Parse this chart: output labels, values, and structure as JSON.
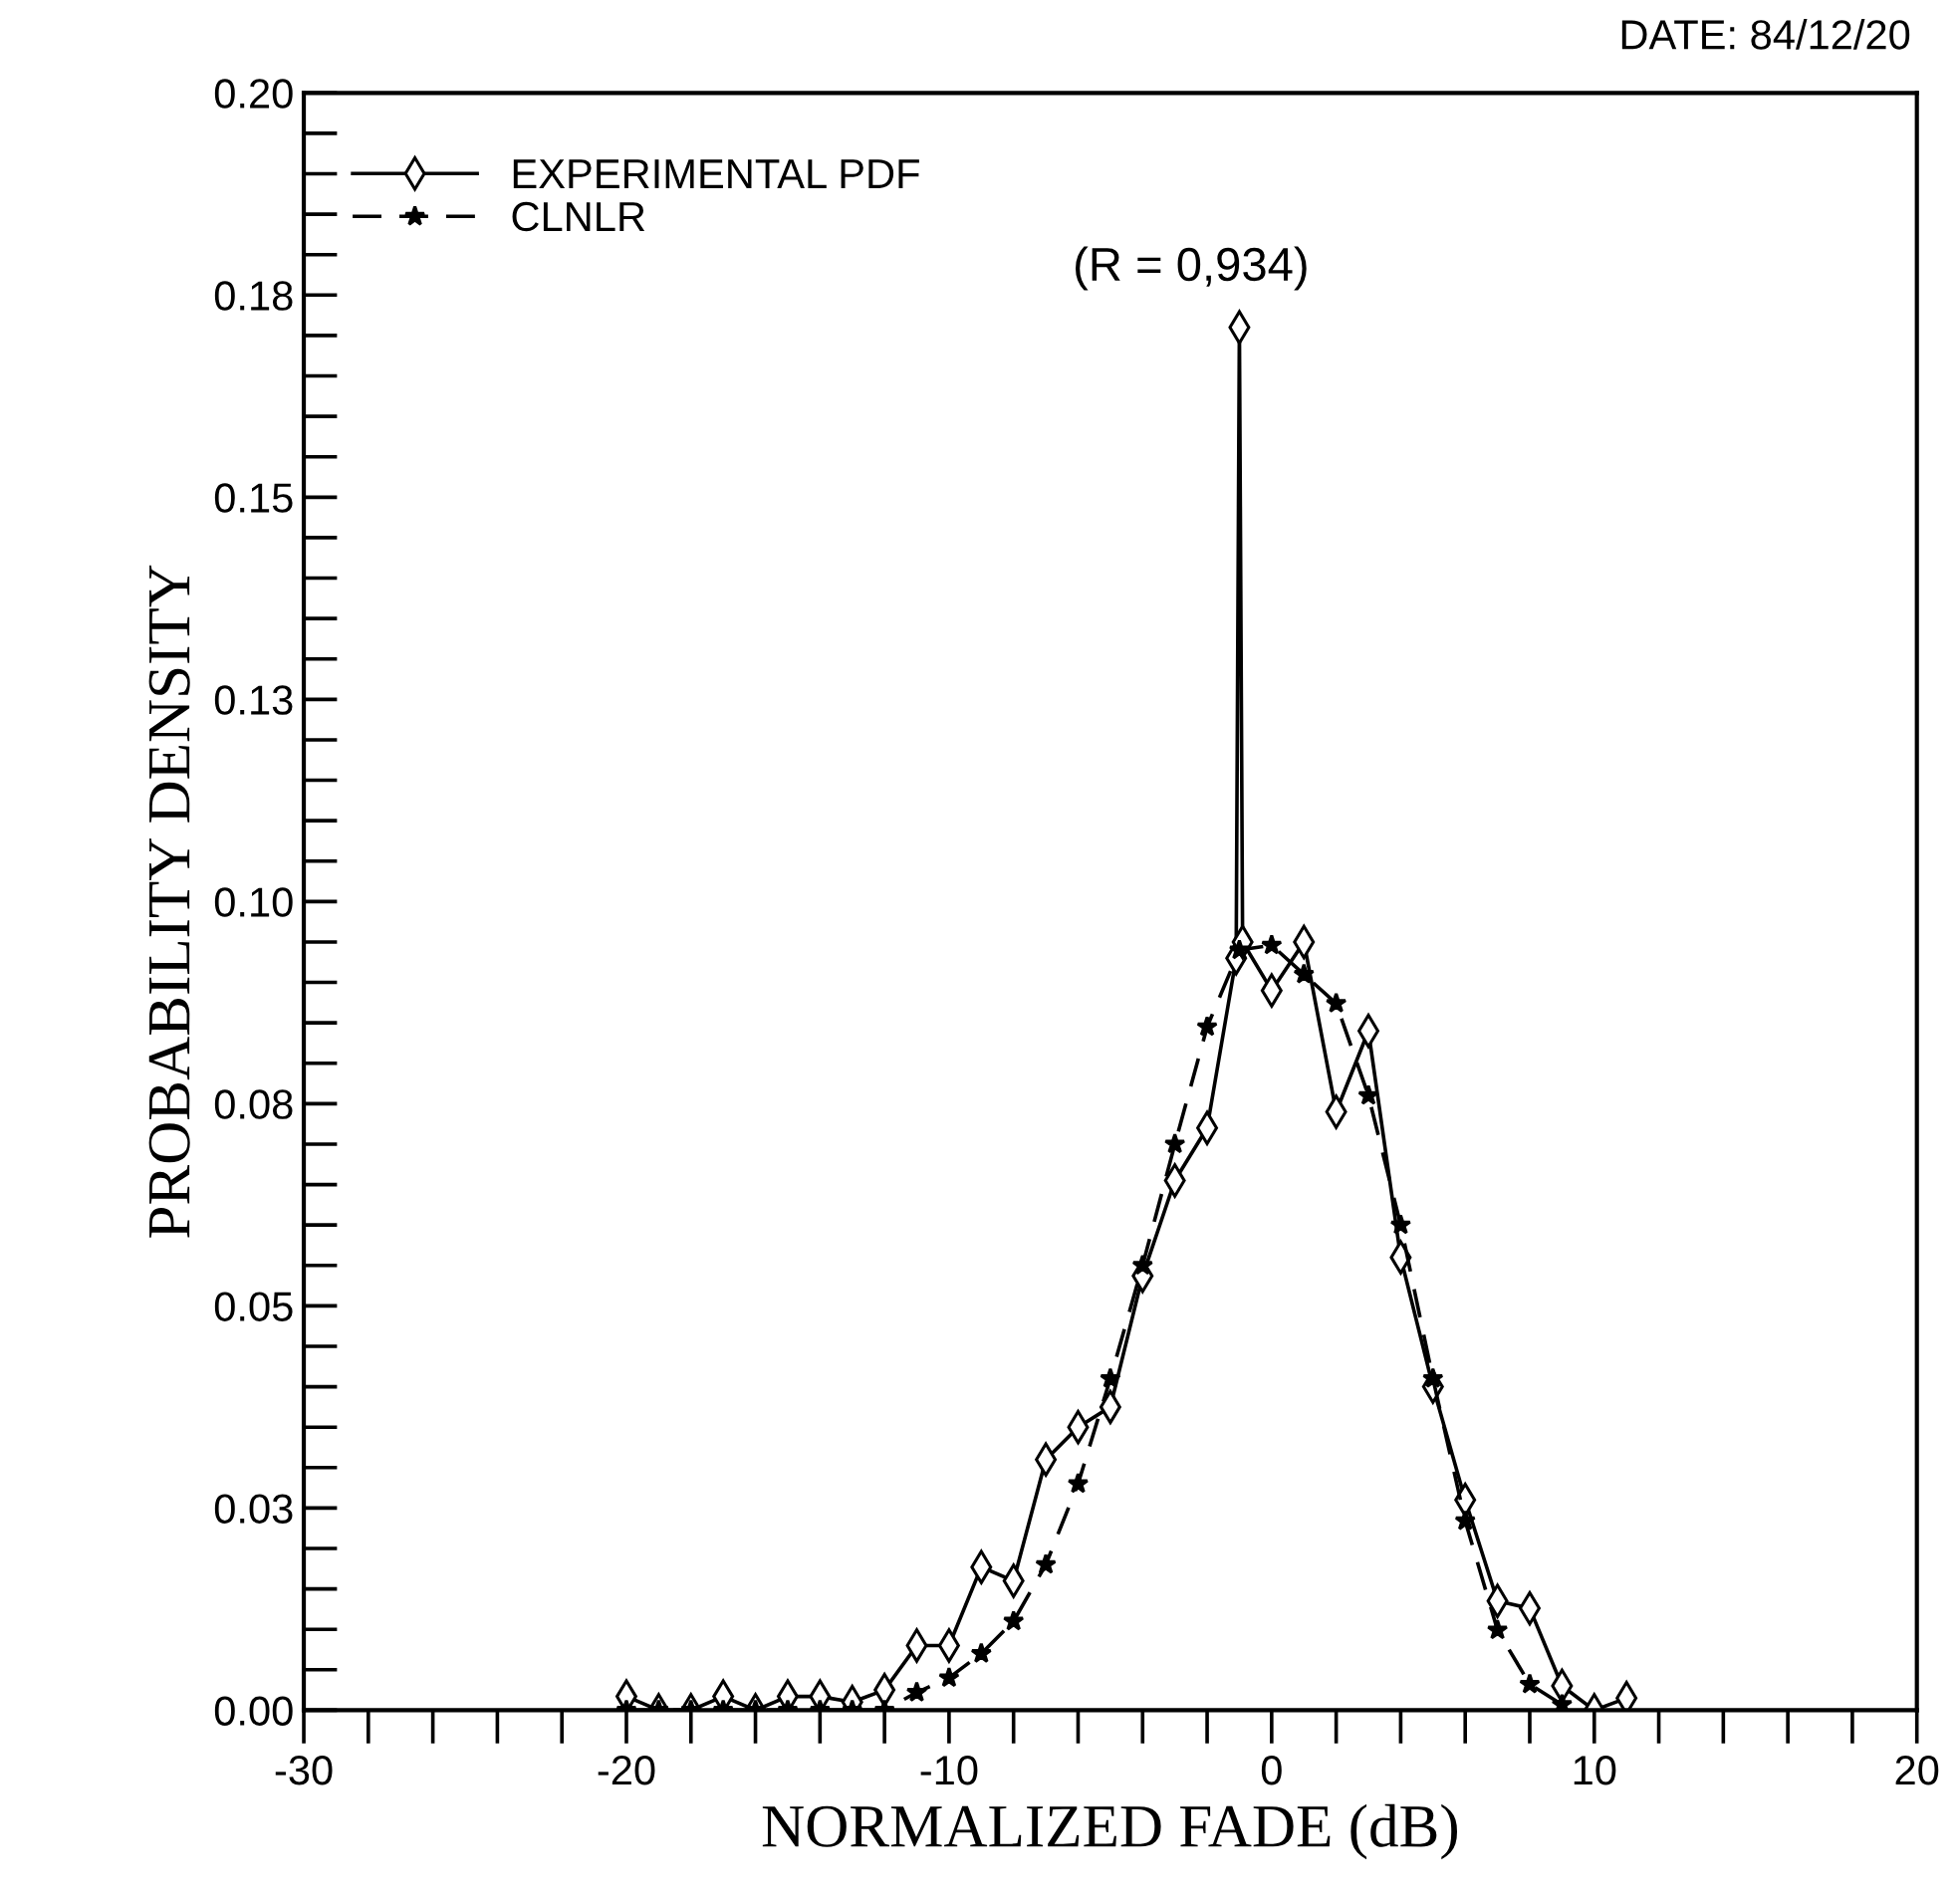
{
  "chart_data": {
    "type": "line",
    "xlabel": "NORMALIZED FADE (dB)",
    "ylabel": "PROBABILITY DENSITY",
    "annotations": [
      "DATE: 84/12/20",
      "(R = 0,934)"
    ],
    "series": [
      {
        "name": "EXPERIMENTAL PDF",
        "color": "#000000",
        "marker": "diamond",
        "line_style": "solid",
        "x": [
          -20,
          -19,
          -18,
          -17,
          -16,
          -15,
          -14,
          -13,
          -12,
          -11,
          -10,
          -9,
          -8,
          -7,
          -6,
          -5,
          -4,
          -3,
          -2,
          -1.1,
          -1,
          -0.9,
          0,
          1,
          2,
          3,
          4,
          5,
          6,
          7,
          8,
          9,
          10,
          11
        ],
        "values": [
          0.0017,
          0,
          0,
          0.0017,
          0,
          0.0017,
          0.0017,
          0.001,
          0.0025,
          0.008,
          0.008,
          0.0177,
          0.016,
          0.031,
          0.035,
          0.0375,
          0.0537,
          0.0655,
          0.072,
          0.093,
          0.171,
          0.095,
          0.089,
          0.095,
          0.074,
          0.084,
          0.056,
          0.04,
          0.026,
          0.0135,
          0.0126,
          0.003,
          0,
          0.0015
        ]
      },
      {
        "name": "CLNLR",
        "color": "#000000",
        "marker": "star",
        "line_style": "dashed",
        "x": [
          -20,
          -19,
          -18,
          -17,
          -16,
          -15,
          -14,
          -13,
          -12,
          -11,
          -10,
          -9,
          -8,
          -7,
          -6,
          -5,
          -4,
          -3,
          -2,
          -1,
          0,
          1,
          2,
          3,
          4,
          5,
          6,
          7,
          8,
          9
        ],
        "values": [
          0,
          0,
          0,
          0,
          0,
          0,
          0,
          0,
          0,
          0.0022,
          0.004,
          0.007,
          0.011,
          0.018,
          0.028,
          0.041,
          0.055,
          0.07,
          0.0845,
          0.094,
          0.0946,
          0.091,
          0.0874,
          0.076,
          0.06,
          0.041,
          0.0234,
          0.0099,
          0.0032,
          0.0007
        ]
      }
    ],
    "xlim": [
      -30,
      20
    ],
    "xticks": [
      -30,
      -20,
      -10,
      0,
      10,
      20
    ],
    "ylim": [
      0,
      0.2
    ],
    "yticks": [
      {
        "value": 0,
        "label": "0.00"
      },
      {
        "value": 0.025,
        "label": "0.03"
      },
      {
        "value": 0.05,
        "label": "0.05"
      },
      {
        "value": 0.075,
        "label": "0.08"
      },
      {
        "value": 0.1,
        "label": "0.10"
      },
      {
        "value": 0.125,
        "label": "0.13"
      },
      {
        "value": 0.15,
        "label": "0.15"
      },
      {
        "value": 0.175,
        "label": "0.18"
      },
      {
        "value": 0.2,
        "label": "0.20"
      }
    ],
    "grid": false,
    "legend": "top left"
  }
}
